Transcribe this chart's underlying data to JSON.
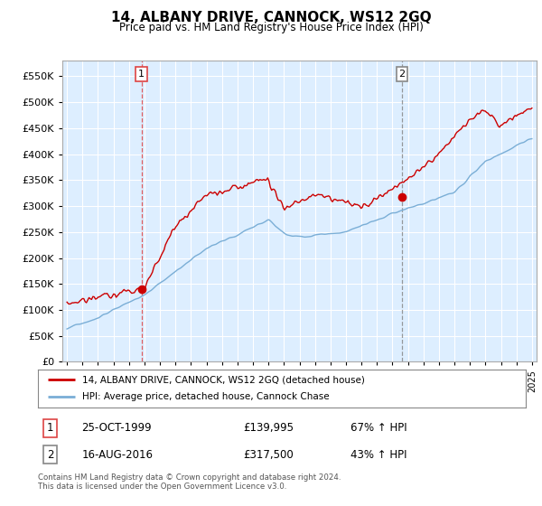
{
  "title": "14, ALBANY DRIVE, CANNOCK, WS12 2GQ",
  "subtitle": "Price paid vs. HM Land Registry's House Price Index (HPI)",
  "legend_line1": "14, ALBANY DRIVE, CANNOCK, WS12 2GQ (detached house)",
  "legend_line2": "HPI: Average price, detached house, Cannock Chase",
  "annotation1_label": "1",
  "annotation1_date": "25-OCT-1999",
  "annotation1_price": "£139,995",
  "annotation1_hpi": "67% ↑ HPI",
  "annotation2_label": "2",
  "annotation2_date": "16-AUG-2016",
  "annotation2_price": "£317,500",
  "annotation2_hpi": "43% ↑ HPI",
  "footer": "Contains HM Land Registry data © Crown copyright and database right 2024.\nThis data is licensed under the Open Government Licence v3.0.",
  "price_color": "#cc0000",
  "hpi_color": "#7aaed6",
  "vline1_color": "#dd4444",
  "vline2_color": "#888888",
  "background_color": "#ffffff",
  "chart_bg_color": "#ddeeff",
  "grid_color": "#ffffff",
  "ylim": [
    0,
    580000
  ],
  "yticks": [
    0,
    50000,
    100000,
    150000,
    200000,
    250000,
    300000,
    350000,
    400000,
    450000,
    500000,
    550000
  ],
  "purchase1_x": 1999.81,
  "purchase1_y": 139995,
  "purchase2_x": 2016.62,
  "purchase2_y": 317500,
  "xmin": 1995,
  "xmax": 2025
}
